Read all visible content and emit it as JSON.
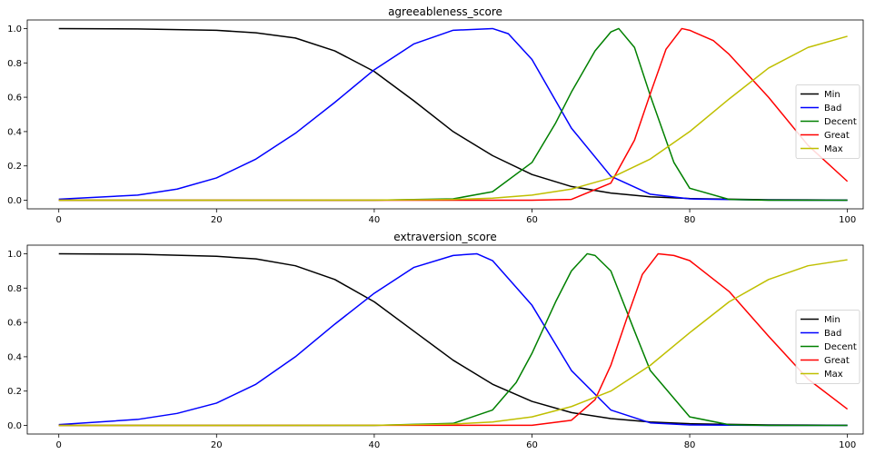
{
  "chart_data": [
    {
      "type": "line",
      "title": "agreeableness_score",
      "xlim": [
        -4,
        102
      ],
      "ylim": [
        -0.05,
        1.05
      ],
      "xticks": [
        0,
        20,
        40,
        60,
        80,
        100
      ],
      "yticks": [
        0.0,
        0.2,
        0.4,
        0.6,
        0.8,
        1.0
      ],
      "legend": "center-right",
      "series": [
        {
          "name": "Min",
          "color": "#000000",
          "x": [
            0,
            10,
            20,
            25,
            30,
            35,
            40,
            45,
            50,
            55,
            60,
            65,
            70,
            75,
            80,
            90,
            100
          ],
          "y": [
            1.0,
            0.998,
            0.99,
            0.975,
            0.945,
            0.87,
            0.75,
            0.58,
            0.4,
            0.26,
            0.15,
            0.08,
            0.042,
            0.02,
            0.01,
            0.003,
            0.001
          ]
        },
        {
          "name": "Bad",
          "color": "#0000ff",
          "x": [
            0,
            10,
            15,
            20,
            25,
            30,
            35,
            40,
            45,
            50,
            55,
            57,
            60,
            65,
            70,
            75,
            80,
            90,
            100
          ],
          "y": [
            0.006,
            0.03,
            0.065,
            0.13,
            0.24,
            0.39,
            0.57,
            0.76,
            0.91,
            0.99,
            1.0,
            0.97,
            0.82,
            0.42,
            0.14,
            0.035,
            0.008,
            0.001,
            0.0
          ]
        },
        {
          "name": "Decent",
          "color": "#008000",
          "x": [
            0,
            40,
            50,
            55,
            60,
            63,
            65,
            68,
            70,
            71,
            73,
            75,
            78,
            80,
            85,
            90,
            100
          ],
          "y": [
            0.0,
            0.0,
            0.008,
            0.05,
            0.22,
            0.45,
            0.63,
            0.87,
            0.98,
            1.0,
            0.89,
            0.61,
            0.22,
            0.07,
            0.005,
            0.0,
            0.0
          ]
        },
        {
          "name": "Great",
          "color": "#ff0000",
          "x": [
            0,
            60,
            65,
            70,
            73,
            75,
            77,
            79,
            80,
            83,
            85,
            90,
            95,
            100
          ],
          "y": [
            0.0,
            0.0,
            0.005,
            0.1,
            0.35,
            0.62,
            0.88,
            1.0,
            0.99,
            0.93,
            0.85,
            0.6,
            0.32,
            0.11
          ]
        },
        {
          "name": "Max",
          "color": "#bfbf00",
          "x": [
            0,
            40,
            50,
            55,
            60,
            65,
            70,
            75,
            80,
            85,
            90,
            95,
            100
          ],
          "y": [
            0.0,
            0.001,
            0.005,
            0.012,
            0.03,
            0.065,
            0.13,
            0.24,
            0.4,
            0.59,
            0.77,
            0.89,
            0.955
          ]
        }
      ]
    },
    {
      "type": "line",
      "title": "extraversion_score",
      "xlim": [
        -4,
        102
      ],
      "ylim": [
        -0.05,
        1.05
      ],
      "xticks": [
        0,
        20,
        40,
        60,
        80,
        100
      ],
      "yticks": [
        0.0,
        0.2,
        0.4,
        0.6,
        0.8,
        1.0
      ],
      "legend": "center-right",
      "series": [
        {
          "name": "Min",
          "color": "#000000",
          "x": [
            0,
            10,
            20,
            25,
            30,
            35,
            40,
            45,
            50,
            55,
            60,
            65,
            70,
            75,
            80,
            90,
            100
          ],
          "y": [
            1.0,
            0.997,
            0.985,
            0.97,
            0.93,
            0.85,
            0.72,
            0.55,
            0.38,
            0.24,
            0.14,
            0.075,
            0.04,
            0.02,
            0.01,
            0.003,
            0.001
          ]
        },
        {
          "name": "Bad",
          "color": "#0000ff",
          "x": [
            0,
            10,
            15,
            20,
            25,
            30,
            35,
            40,
            45,
            50,
            53,
            55,
            60,
            65,
            70,
            75,
            80,
            90,
            100
          ],
          "y": [
            0.005,
            0.035,
            0.07,
            0.13,
            0.24,
            0.4,
            0.59,
            0.77,
            0.92,
            0.99,
            1.0,
            0.96,
            0.7,
            0.32,
            0.09,
            0.015,
            0.003,
            0.0,
            0.0
          ]
        },
        {
          "name": "Decent",
          "color": "#008000",
          "x": [
            0,
            40,
            50,
            55,
            58,
            60,
            63,
            65,
            67,
            68,
            70,
            73,
            75,
            80,
            85,
            90,
            100
          ],
          "y": [
            0.0,
            0.0,
            0.012,
            0.09,
            0.25,
            0.42,
            0.72,
            0.9,
            1.0,
            0.99,
            0.9,
            0.55,
            0.32,
            0.05,
            0.004,
            0.0,
            0.0
          ]
        },
        {
          "name": "Great",
          "color": "#ff0000",
          "x": [
            0,
            60,
            65,
            68,
            70,
            72,
            74,
            76,
            78,
            80,
            85,
            90,
            95,
            100
          ],
          "y": [
            0.0,
            0.001,
            0.03,
            0.15,
            0.35,
            0.62,
            0.88,
            1.0,
            0.99,
            0.96,
            0.78,
            0.52,
            0.27,
            0.095
          ]
        },
        {
          "name": "Max",
          "color": "#bfbf00",
          "x": [
            0,
            40,
            50,
            55,
            60,
            65,
            70,
            75,
            80,
            85,
            90,
            95,
            100
          ],
          "y": [
            0.0,
            0.001,
            0.008,
            0.02,
            0.05,
            0.11,
            0.2,
            0.35,
            0.54,
            0.72,
            0.85,
            0.93,
            0.965
          ]
        }
      ]
    }
  ]
}
